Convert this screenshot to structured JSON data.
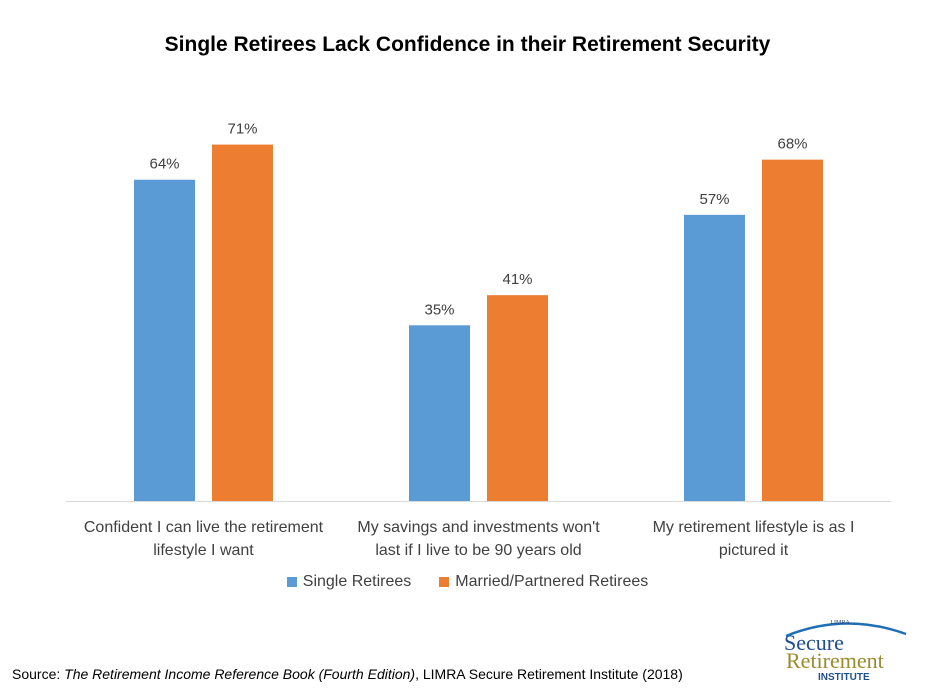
{
  "chart_data": {
    "type": "bar",
    "title": "Single Retirees Lack Confidence in their Retirement Security",
    "categories": [
      "Confident I can live the retirement lifestyle I want",
      "My savings and investments won't last if I live to be 90 years old",
      "My retirement lifestyle is as I pictured it"
    ],
    "category_lines": [
      [
        "Confident I can live the retirement",
        "lifestyle I want"
      ],
      [
        "My savings and investments won't",
        "last if I live to be 90 years old"
      ],
      [
        "My retirement lifestyle is as I",
        "pictured it"
      ]
    ],
    "series": [
      {
        "name": "Single Retirees",
        "values": [
          64,
          35,
          57
        ],
        "labels": [
          "64%",
          "35%",
          "57%"
        ],
        "color": "#5B9BD5"
      },
      {
        "name": "Married/Partnered Retirees",
        "values": [
          71,
          41,
          68
        ],
        "labels": [
          "71%",
          "41%",
          "68%"
        ],
        "color": "#ED7D31"
      }
    ],
    "unit": "%",
    "ylim": [
      0,
      80
    ],
    "grid": false,
    "legend_position": "bottom"
  },
  "source": {
    "prefix": "Source: ",
    "book": "The Retirement Income Reference Book (Fourth Edition)",
    "suffix": ", LIMRA Secure Retirement Institute (2018)"
  },
  "logo": {
    "org": "LIMRA",
    "line1": "Secure",
    "line2": "Retirement",
    "line3": "INSTITUTE"
  }
}
